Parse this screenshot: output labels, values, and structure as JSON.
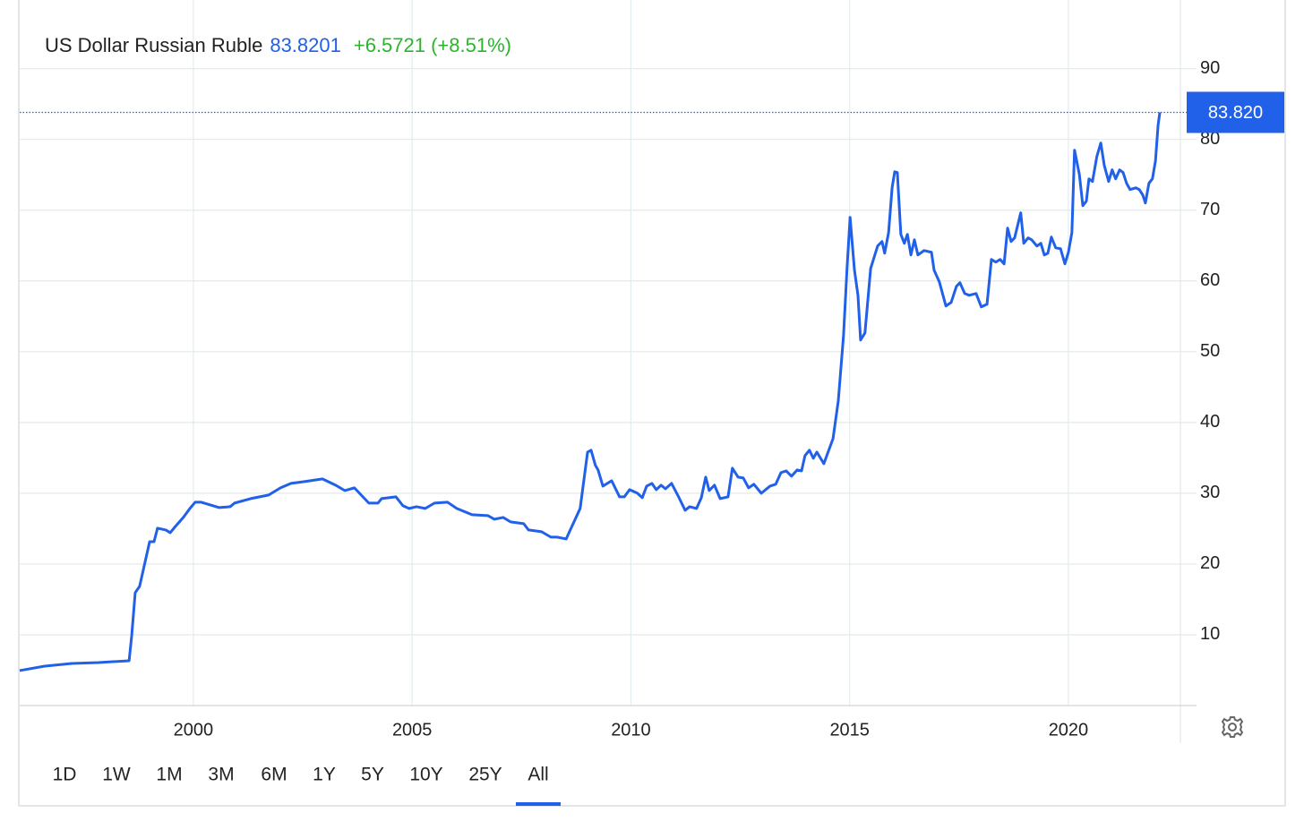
{
  "chart_data": {
    "type": "line",
    "title": "US Dollar Russian Ruble",
    "price": "83.8201",
    "change": "+6.5721 (+8.51%)",
    "price_marker": {
      "value": 83.8201,
      "label": "83.820"
    },
    "ranges": [
      "1D",
      "1W",
      "1M",
      "3M",
      "6M",
      "1Y",
      "5Y",
      "10Y",
      "25Y",
      "All"
    ],
    "active_range": "All",
    "xlim": [
      1996.03,
      2022.56
    ],
    "ylim": [
      0,
      99.7
    ],
    "xticks": [
      2000,
      2005,
      2010,
      2015,
      2020
    ],
    "yticks": [
      10,
      20,
      30,
      40,
      50,
      60,
      70,
      80,
      90
    ],
    "grid": true,
    "x": [
      1996.03,
      1996.6,
      1997.22,
      1997.83,
      1998.53,
      1998.59,
      1998.67,
      1998.77,
      1999.0,
      1999.1,
      1999.18,
      1999.37,
      1999.47,
      1999.59,
      1999.77,
      1999.92,
      2000.04,
      2000.18,
      2000.59,
      2000.84,
      2000.94,
      2001.31,
      2001.72,
      2001.99,
      2002.23,
      2002.54,
      2002.95,
      2003.25,
      2003.46,
      2003.68,
      2004.01,
      2004.22,
      2004.3,
      2004.63,
      2004.79,
      2004.93,
      2005.1,
      2005.3,
      2005.51,
      2005.81,
      2006.02,
      2006.37,
      2006.73,
      2006.88,
      2007.08,
      2007.25,
      2007.55,
      2007.66,
      2007.96,
      2008.17,
      2008.31,
      2008.52,
      2008.68,
      2008.84,
      2009.01,
      2009.09,
      2009.19,
      2009.25,
      2009.36,
      2009.56,
      2009.74,
      2009.85,
      2009.97,
      2010.15,
      2010.26,
      2010.36,
      2010.48,
      2010.58,
      2010.69,
      2010.79,
      2010.93,
      2011.1,
      2011.24,
      2011.34,
      2011.5,
      2011.61,
      2011.71,
      2011.79,
      2011.91,
      2012.04,
      2012.22,
      2012.32,
      2012.45,
      2012.57,
      2012.69,
      2012.81,
      2012.98,
      2013.18,
      2013.31,
      2013.43,
      2013.55,
      2013.67,
      2013.8,
      2013.9,
      2013.98,
      2014.08,
      2014.17,
      2014.25,
      2014.41,
      2014.62,
      2014.74,
      2014.86,
      2014.94,
      2015.01,
      2015.11,
      2015.19,
      2015.25,
      2015.35,
      2015.48,
      2015.64,
      2015.74,
      2015.8,
      2015.89,
      2015.97,
      2016.03,
      2016.09,
      2016.17,
      2016.25,
      2016.32,
      2016.4,
      2016.48,
      2016.56,
      2016.7,
      2016.87,
      2016.93,
      2017.05,
      2017.2,
      2017.32,
      2017.44,
      2017.52,
      2017.63,
      2017.73,
      2017.89,
      2018.01,
      2018.14,
      2018.24,
      2018.34,
      2018.44,
      2018.53,
      2018.61,
      2018.69,
      2018.77,
      2018.91,
      2018.98,
      2019.08,
      2019.16,
      2019.28,
      2019.37,
      2019.45,
      2019.53,
      2019.61,
      2019.71,
      2019.82,
      2019.92,
      2020.0,
      2020.08,
      2020.14,
      2020.25,
      2020.33,
      2020.41,
      2020.47,
      2020.55,
      2020.65,
      2020.74,
      2020.82,
      2020.92,
      2021.0,
      2021.08,
      2021.17,
      2021.25,
      2021.33,
      2021.41,
      2021.54,
      2021.62,
      2021.7,
      2021.76,
      2021.84,
      2021.92,
      2021.99,
      2022.05,
      2022.09
    ],
    "series": [
      {
        "name": "US Dollar Russian Ruble",
        "color": "#2160e8",
        "values": [
          4.94,
          5.57,
          5.95,
          6.08,
          6.33,
          9.87,
          15.95,
          16.84,
          23.16,
          23.16,
          25.06,
          24.81,
          24.43,
          25.32,
          26.58,
          27.85,
          28.73,
          28.73,
          27.97,
          28.1,
          28.61,
          29.24,
          29.75,
          30.76,
          31.39,
          31.65,
          32.03,
          31.14,
          30.38,
          30.76,
          28.61,
          28.61,
          29.24,
          29.49,
          28.23,
          27.85,
          28.1,
          27.85,
          28.61,
          28.73,
          27.85,
          26.96,
          26.84,
          26.33,
          26.58,
          25.95,
          25.7,
          24.81,
          24.56,
          23.8,
          23.8,
          23.54,
          25.7,
          27.85,
          35.82,
          36.08,
          33.92,
          33.29,
          31.01,
          31.77,
          29.49,
          29.49,
          30.51,
          30.0,
          29.37,
          31.01,
          31.39,
          30.51,
          31.14,
          30.63,
          31.39,
          29.37,
          27.59,
          28.1,
          27.85,
          29.37,
          32.28,
          30.38,
          31.14,
          29.24,
          29.49,
          33.54,
          32.28,
          32.15,
          30.76,
          31.27,
          30.0,
          31.01,
          31.27,
          32.91,
          33.16,
          32.41,
          33.29,
          33.16,
          35.32,
          36.08,
          34.94,
          35.82,
          34.18,
          37.72,
          43.04,
          52.28,
          61.77,
          68.99,
          61.52,
          57.97,
          51.65,
          52.66,
          61.77,
          64.94,
          65.57,
          63.92,
          66.84,
          73.16,
          75.44,
          75.32,
          66.58,
          65.32,
          66.58,
          63.67,
          65.82,
          63.67,
          64.3,
          64.05,
          61.52,
          59.87,
          56.46,
          56.96,
          59.24,
          59.75,
          58.23,
          57.97,
          58.23,
          56.33,
          56.71,
          63.04,
          62.66,
          63.04,
          62.41,
          67.47,
          65.57,
          66.08,
          69.62,
          65.32,
          66.08,
          65.82,
          64.94,
          65.32,
          63.67,
          63.92,
          66.2,
          64.68,
          64.56,
          62.41,
          64.05,
          66.84,
          78.48,
          75.06,
          70.63,
          71.27,
          74.43,
          74.05,
          77.59,
          79.49,
          76.33,
          74.05,
          75.7,
          74.43,
          75.7,
          75.32,
          73.8,
          72.91,
          73.16,
          72.91,
          72.15,
          71.01,
          73.8,
          74.43,
          76.96,
          82.03,
          83.82
        ]
      }
    ]
  }
}
